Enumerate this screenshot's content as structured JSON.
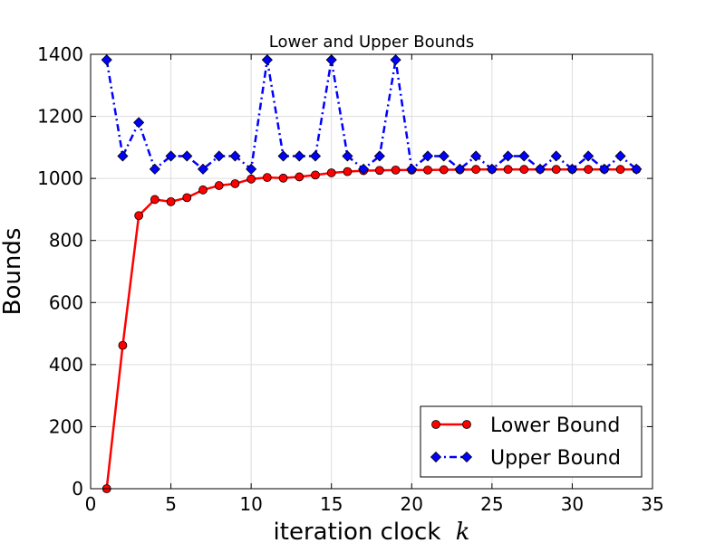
{
  "chart_data": {
    "type": "line",
    "title": "Lower and Upper Bounds",
    "xlabel": "iteration clock",
    "xlabel_var": "k",
    "ylabel": "Bounds",
    "xlim": [
      0,
      35
    ],
    "ylim": [
      0,
      1400
    ],
    "xticks": [
      0,
      5,
      10,
      15,
      20,
      25,
      30,
      35
    ],
    "yticks": [
      0,
      200,
      400,
      600,
      800,
      1000,
      1200,
      1400
    ],
    "grid": true,
    "legend_position": "lower-right",
    "series": [
      {
        "name": "Lower Bound",
        "color": "#ff0000",
        "line_style": "solid",
        "marker": "circle",
        "x": [
          1,
          2,
          3,
          4,
          5,
          6,
          7,
          8,
          9,
          10,
          11,
          12,
          13,
          14,
          15,
          16,
          17,
          18,
          19,
          20,
          21,
          22,
          23,
          24,
          25,
          26,
          27,
          28,
          29,
          30,
          31,
          32,
          33,
          34
        ],
        "values": [
          0,
          462,
          880,
          932,
          925,
          938,
          963,
          977,
          983,
          998,
          1003,
          1001,
          1005,
          1011,
          1018,
          1022,
          1025,
          1026,
          1027,
          1027,
          1027,
          1028,
          1028,
          1029,
          1029,
          1029,
          1029,
          1029,
          1029,
          1029,
          1029,
          1029,
          1029,
          1029
        ]
      },
      {
        "name": "Upper Bound",
        "color": "#0000ff",
        "line_style": "dash-dot",
        "marker": "diamond",
        "x": [
          1,
          2,
          3,
          4,
          5,
          6,
          7,
          8,
          9,
          10,
          11,
          12,
          13,
          14,
          15,
          16,
          17,
          18,
          19,
          20,
          21,
          22,
          23,
          24,
          25,
          26,
          27,
          28,
          29,
          30,
          31,
          32,
          33,
          34
        ],
        "values": [
          1382,
          1072,
          1180,
          1030,
          1072,
          1072,
          1030,
          1072,
          1072,
          1030,
          1382,
          1072,
          1072,
          1072,
          1382,
          1072,
          1030,
          1072,
          1382,
          1030,
          1072,
          1072,
          1030,
          1072,
          1030,
          1072,
          1072,
          1030,
          1072,
          1030,
          1072,
          1030,
          1072,
          1030
        ]
      }
    ]
  }
}
